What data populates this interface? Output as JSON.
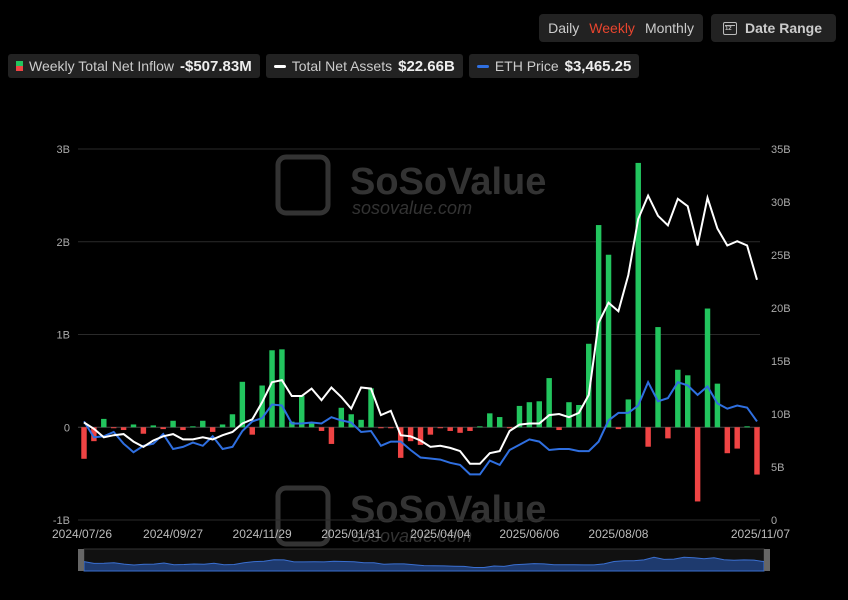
{
  "toolbar": {
    "daily_label": "Daily",
    "weekly_label": "Weekly",
    "monthly_label": "Monthly",
    "date_range_label": "Date Range",
    "active": "Weekly"
  },
  "legend": {
    "inflow_label": "Weekly Total Net Inflow",
    "inflow_value": "-$507.83M",
    "assets_label": "Total Net Assets",
    "assets_value": "$22.66B",
    "price_label": "ETH Price",
    "price_value": "$3,465.25"
  },
  "watermark": {
    "brand": "SoSoValue",
    "url": "sosovalue.com"
  },
  "colors": {
    "positive": "#22c55e",
    "negative": "#ef4444",
    "assets_line": "#ffffff",
    "price_line": "#2f6fe0",
    "accent": "#e8452e"
  },
  "chart_data": {
    "type": "bar",
    "x_tick_labels": [
      "2024/07/26",
      "2024/09/27",
      "2024/11/29",
      "2025/01/31",
      "2025/04/04",
      "2025/06/06",
      "2025/08/08",
      "2025/11/07"
    ],
    "y_left": {
      "ticks": [
        "3B",
        "2B",
        "1B",
        "0",
        "-1B"
      ],
      "range": [
        -1,
        3
      ],
      "unit": "B USD"
    },
    "y_right": {
      "ticks": [
        "35B",
        "30B",
        "25B",
        "20B",
        "15B",
        "10B",
        "5B",
        "0"
      ],
      "range": [
        0,
        35
      ],
      "unit": "B USD"
    },
    "grid": true,
    "series": [
      {
        "kind": "bar",
        "values": [
          -0.34,
          -0.15,
          0.09,
          -0.01,
          -0.03,
          0.03,
          -0.07,
          0.02,
          -0.02,
          0.07,
          -0.03,
          0.01,
          0.07,
          -0.05,
          0.03,
          0.14,
          0.49,
          -0.08,
          0.45,
          0.83,
          0.84,
          0.06,
          0.34,
          0.04,
          -0.04,
          -0.18,
          0.21,
          0.14,
          0.08,
          0.42,
          -0.01,
          -0.01,
          -0.33,
          -0.15,
          -0.19,
          -0.08,
          -0.01,
          -0.04,
          -0.06,
          -0.04,
          0.01,
          0.15,
          0.11,
          -0.01,
          0.23,
          0.27,
          0.28,
          0.53,
          -0.03,
          0.27,
          0.24,
          0.9,
          2.18,
          1.86,
          -0.02,
          0.3,
          2.85,
          -0.21,
          1.08,
          -0.12,
          0.62,
          0.56,
          -0.8,
          1.28,
          0.47,
          -0.28,
          -0.23,
          0.01,
          -0.51
        ]
      },
      {
        "kind": "line",
        "name": "Total Net Assets",
        "axis": "right",
        "values": [
          9.2,
          8.6,
          7.8,
          8.0,
          8.1,
          7.4,
          6.9,
          7.5,
          7.9,
          8.1,
          7.6,
          7.6,
          7.8,
          7.6,
          8.0,
          8.3,
          9.1,
          9.5,
          11.1,
          13.0,
          13.2,
          11.7,
          11.7,
          12.4,
          11.3,
          12.5,
          11.6,
          10.5,
          12.5,
          12.4,
          9.9,
          10.3,
          8.0,
          7.9,
          7.5,
          6.9,
          7.0,
          6.8,
          6.5,
          5.3,
          5.3,
          6.3,
          6.5,
          8.4,
          9.0,
          9.1,
          9.1,
          9.9,
          10.0,
          9.7,
          10.1,
          11.8,
          18.6,
          20.5,
          19.7,
          23.1,
          28.4,
          30.6,
          28.7,
          27.8,
          30.3,
          29.6,
          25.9,
          30.4,
          27.5,
          25.9,
          26.3,
          25.9,
          22.66
        ]
      },
      {
        "kind": "line",
        "name": "ETH Price",
        "axis": "right",
        "values": [
          9.3,
          7.8,
          7.9,
          8.3,
          7.2,
          6.4,
          7.0,
          7.2,
          8.1,
          6.7,
          6.9,
          7.3,
          7.0,
          7.9,
          6.7,
          6.9,
          8.4,
          9.3,
          9.6,
          10.9,
          10.8,
          9.1,
          9.1,
          9.2,
          9.1,
          9.7,
          9.4,
          9.2,
          8.3,
          8.4,
          7.0,
          7.4,
          7.4,
          6.6,
          5.9,
          5.8,
          5.7,
          5.4,
          5.2,
          4.3,
          4.3,
          5.6,
          5.2,
          6.6,
          7.1,
          7.6,
          7.4,
          6.6,
          6.7,
          6.7,
          6.5,
          6.5,
          7.4,
          9.4,
          10.1,
          10.1,
          10.8,
          13.0,
          11.2,
          11.5,
          13.0,
          12.7,
          11.8,
          12.6,
          11.0,
          10.5,
          10.8,
          10.6,
          9.3
        ]
      }
    ]
  }
}
